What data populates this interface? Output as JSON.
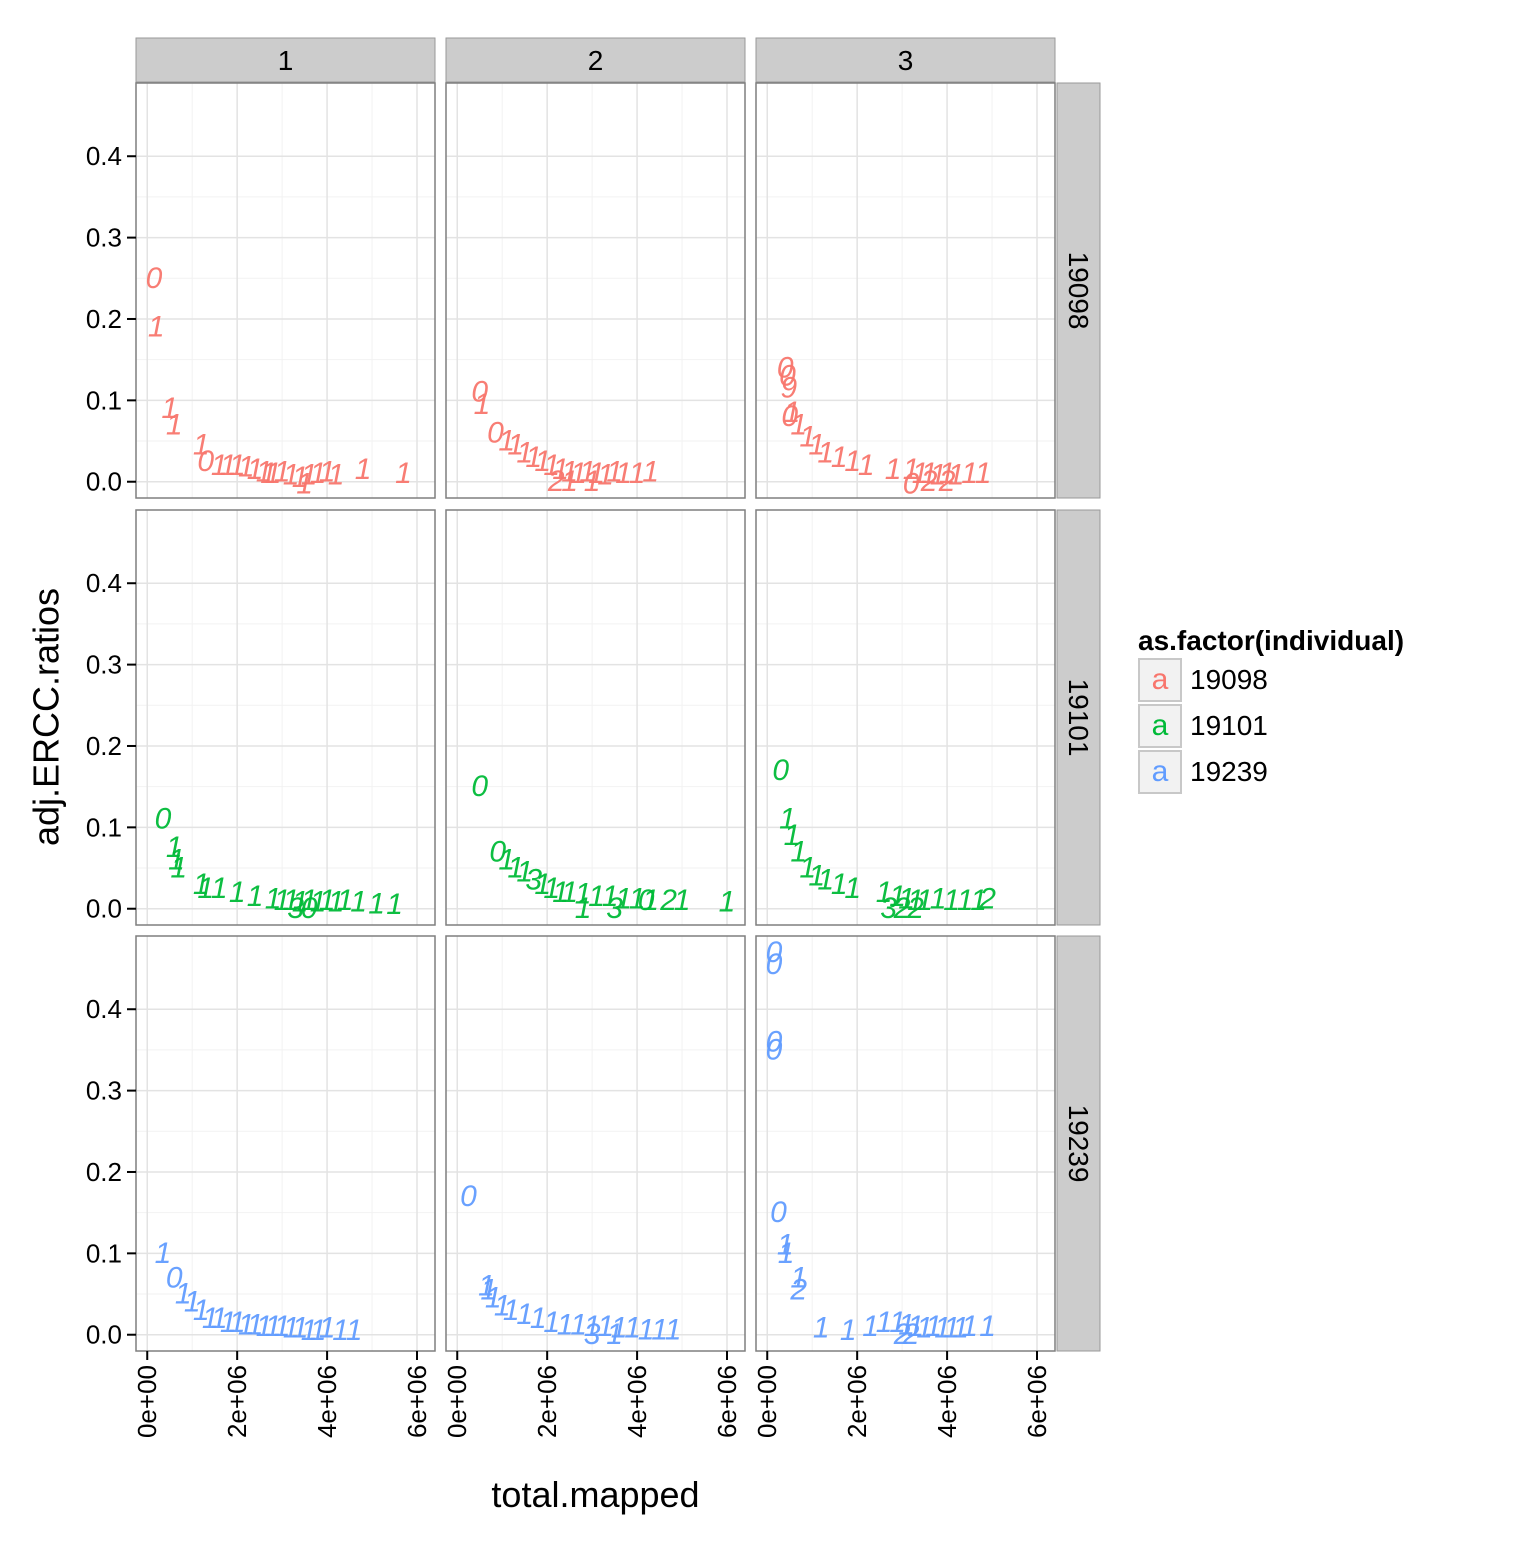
{
  "chart_data": {
    "type": "scatter",
    "title": "",
    "xlabel": "total.mapped",
    "ylabel": "adj.ERCC.ratios",
    "xlim": [
      -250000,
      6400000
    ],
    "ylim": [
      -0.02,
      0.49
    ],
    "x_ticks": [
      0,
      2000000,
      4000000,
      6000000
    ],
    "x_tick_labels": [
      "0e+00",
      "2e+06",
      "4e+06",
      "6e+06"
    ],
    "y_ticks": [
      0,
      0.1,
      0.2,
      0.3,
      0.4
    ],
    "y_tick_labels": [
      "0.0",
      "0.1",
      "0.2",
      "0.3",
      "0.4"
    ],
    "grid": true,
    "facet_cols": [
      "1",
      "2",
      "3"
    ],
    "facet_rows": [
      "19098",
      "19101",
      "19239"
    ],
    "legend": {
      "title": "as.factor(individual)",
      "key_glyph": "a",
      "position": "right",
      "entries": [
        {
          "name": "19098",
          "color": "#F8766D"
        },
        {
          "name": "19101",
          "color": "#00BA38"
        },
        {
          "name": "19239",
          "color": "#619CFF"
        }
      ]
    },
    "point_label_note": "points drawn as text labels (cell number)",
    "panels": [
      {
        "row": "19098",
        "col": "1",
        "points": [
          [
            150000,
            0.25,
            "0"
          ],
          [
            200000,
            0.19,
            "1"
          ],
          [
            500000,
            0.09,
            "1"
          ],
          [
            600000,
            0.07,
            "1"
          ],
          [
            1200000,
            0.045,
            "1"
          ],
          [
            1300000,
            0.025,
            "0"
          ],
          [
            1600000,
            0.02,
            "1"
          ],
          [
            1800000,
            0.02,
            "1"
          ],
          [
            2000000,
            0.02,
            "1"
          ],
          [
            2200000,
            0.018,
            "1"
          ],
          [
            2400000,
            0.015,
            "1"
          ],
          [
            2600000,
            0.012,
            "1"
          ],
          [
            2800000,
            0.01,
            "1"
          ],
          [
            3000000,
            0.012,
            "1"
          ],
          [
            3200000,
            0.008,
            "1"
          ],
          [
            3400000,
            0.005,
            "1"
          ],
          [
            3600000,
            0.008,
            "1"
          ],
          [
            3800000,
            0.01,
            "1"
          ],
          [
            4000000,
            0.012,
            "1"
          ],
          [
            4200000,
            0.008,
            "1"
          ],
          [
            4800000,
            0.015,
            "1"
          ],
          [
            5700000,
            0.01,
            "1"
          ],
          [
            3500000,
            -0.003,
            "1"
          ],
          [
            2700000,
            0.01,
            "1"
          ]
        ]
      },
      {
        "row": "19098",
        "col": "2",
        "points": [
          [
            500000,
            0.11,
            "0"
          ],
          [
            550000,
            0.095,
            "1"
          ],
          [
            850000,
            0.06,
            "0"
          ],
          [
            1100000,
            0.05,
            "1"
          ],
          [
            1300000,
            0.045,
            "1"
          ],
          [
            1500000,
            0.035,
            "1"
          ],
          [
            1700000,
            0.03,
            "1"
          ],
          [
            1900000,
            0.025,
            "1"
          ],
          [
            2100000,
            0.02,
            "1"
          ],
          [
            2300000,
            0.015,
            "1"
          ],
          [
            2500000,
            0.012,
            "1"
          ],
          [
            2700000,
            0.01,
            "1"
          ],
          [
            2900000,
            0.012,
            "1"
          ],
          [
            3100000,
            0.01,
            "1"
          ],
          [
            3300000,
            0.008,
            "1"
          ],
          [
            3500000,
            0.012,
            "1"
          ],
          [
            3700000,
            0.01,
            "1"
          ],
          [
            4000000,
            0.01,
            "1"
          ],
          [
            4300000,
            0.012,
            "1"
          ],
          [
            2200000,
            0.0,
            "2"
          ],
          [
            2500000,
            0.0,
            "1"
          ],
          [
            3000000,
            0.0,
            "1"
          ]
        ]
      },
      {
        "row": "19098",
        "col": "3",
        "points": [
          [
            400000,
            0.14,
            "0"
          ],
          [
            450000,
            0.13,
            "0"
          ],
          [
            480000,
            0.115,
            "9"
          ],
          [
            500000,
            0.08,
            "0"
          ],
          [
            550000,
            0.085,
            "1"
          ],
          [
            700000,
            0.07,
            "1"
          ],
          [
            900000,
            0.055,
            "1"
          ],
          [
            1100000,
            0.045,
            "1"
          ],
          [
            1300000,
            0.035,
            "1"
          ],
          [
            1600000,
            0.03,
            "1"
          ],
          [
            1900000,
            0.025,
            "1"
          ],
          [
            2200000,
            0.02,
            "1"
          ],
          [
            2800000,
            0.015,
            "1"
          ],
          [
            3200000,
            0.015,
            "1"
          ],
          [
            3400000,
            0.01,
            "1"
          ],
          [
            3600000,
            0.01,
            "1"
          ],
          [
            3800000,
            0.008,
            "1"
          ],
          [
            4000000,
            0.01,
            "1"
          ],
          [
            4200000,
            0.008,
            "1"
          ],
          [
            4500000,
            0.01,
            "1"
          ],
          [
            4800000,
            0.01,
            "1"
          ],
          [
            3200000,
            -0.003,
            "0"
          ],
          [
            3600000,
            0.0,
            "2"
          ],
          [
            4000000,
            0.0,
            "2"
          ]
        ]
      },
      {
        "row": "19101",
        "col": "1",
        "points": [
          [
            350000,
            0.11,
            "0"
          ],
          [
            600000,
            0.075,
            "1"
          ],
          [
            650000,
            0.06,
            "1"
          ],
          [
            700000,
            0.05,
            "1"
          ],
          [
            1200000,
            0.03,
            "1"
          ],
          [
            1300000,
            0.025,
            "1"
          ],
          [
            1600000,
            0.025,
            "1"
          ],
          [
            2000000,
            0.02,
            "1"
          ],
          [
            2400000,
            0.015,
            "1"
          ],
          [
            2800000,
            0.012,
            "1"
          ],
          [
            3000000,
            0.01,
            "1"
          ],
          [
            3200000,
            0.01,
            "1"
          ],
          [
            3400000,
            0.008,
            "1"
          ],
          [
            3600000,
            0.01,
            "1"
          ],
          [
            3800000,
            0.008,
            "1"
          ],
          [
            4000000,
            0.01,
            "1"
          ],
          [
            4200000,
            0.008,
            "1"
          ],
          [
            4400000,
            0.01,
            "1"
          ],
          [
            4700000,
            0.008,
            "1"
          ],
          [
            5100000,
            0.006,
            "1"
          ],
          [
            5500000,
            0.005,
            "1"
          ],
          [
            3300000,
            0.0,
            "3"
          ],
          [
            3600000,
            0.0,
            "0"
          ]
        ]
      },
      {
        "row": "19101",
        "col": "2",
        "points": [
          [
            500000,
            0.15,
            "0"
          ],
          [
            900000,
            0.07,
            "0"
          ],
          [
            1100000,
            0.06,
            "1"
          ],
          [
            1300000,
            0.05,
            "1"
          ],
          [
            1500000,
            0.045,
            "1"
          ],
          [
            1700000,
            0.035,
            "3"
          ],
          [
            1900000,
            0.03,
            "1"
          ],
          [
            2100000,
            0.025,
            "1"
          ],
          [
            2300000,
            0.02,
            "1"
          ],
          [
            2500000,
            0.02,
            "1"
          ],
          [
            2800000,
            0.018,
            "1"
          ],
          [
            3100000,
            0.015,
            "1"
          ],
          [
            3400000,
            0.015,
            "1"
          ],
          [
            3700000,
            0.012,
            "1"
          ],
          [
            4000000,
            0.012,
            "1"
          ],
          [
            4300000,
            0.01,
            "1"
          ],
          [
            4700000,
            0.01,
            "2"
          ],
          [
            5000000,
            0.01,
            "1"
          ],
          [
            6000000,
            0.008,
            "1"
          ],
          [
            2800000,
            0.0,
            "1"
          ],
          [
            3500000,
            0.0,
            "3"
          ],
          [
            4200000,
            0.01,
            "0"
          ]
        ]
      },
      {
        "row": "19101",
        "col": "3",
        "points": [
          [
            300000,
            0.17,
            "0"
          ],
          [
            450000,
            0.11,
            "1"
          ],
          [
            550000,
            0.09,
            "1"
          ],
          [
            700000,
            0.07,
            "1"
          ],
          [
            900000,
            0.05,
            "1"
          ],
          [
            1100000,
            0.04,
            "1"
          ],
          [
            1300000,
            0.035,
            "1"
          ],
          [
            1600000,
            0.03,
            "1"
          ],
          [
            1900000,
            0.025,
            "1"
          ],
          [
            2600000,
            0.02,
            "1"
          ],
          [
            2900000,
            0.015,
            "1"
          ],
          [
            3100000,
            0.012,
            "1"
          ],
          [
            3300000,
            0.01,
            "1"
          ],
          [
            3500000,
            0.01,
            "1"
          ],
          [
            3800000,
            0.012,
            "1"
          ],
          [
            4100000,
            0.01,
            "1"
          ],
          [
            4400000,
            0.01,
            "1"
          ],
          [
            4700000,
            0.01,
            "1"
          ],
          [
            4900000,
            0.012,
            "2"
          ],
          [
            2700000,
            0.0,
            "3"
          ],
          [
            3000000,
            0.0,
            "2"
          ],
          [
            3300000,
            0.0,
            "2"
          ]
        ]
      },
      {
        "row": "19239",
        "col": "1",
        "points": [
          [
            350000,
            0.1,
            "1"
          ],
          [
            600000,
            0.07,
            "0"
          ],
          [
            800000,
            0.05,
            "1"
          ],
          [
            1000000,
            0.04,
            "1"
          ],
          [
            1200000,
            0.03,
            "1"
          ],
          [
            1400000,
            0.02,
            "1"
          ],
          [
            1600000,
            0.02,
            "1"
          ],
          [
            1800000,
            0.015,
            "1"
          ],
          [
            2000000,
            0.015,
            "1"
          ],
          [
            2200000,
            0.012,
            "1"
          ],
          [
            2400000,
            0.012,
            "1"
          ],
          [
            2600000,
            0.01,
            "1"
          ],
          [
            2800000,
            0.01,
            "1"
          ],
          [
            3000000,
            0.01,
            "1"
          ],
          [
            3200000,
            0.008,
            "1"
          ],
          [
            3400000,
            0.008,
            "1"
          ],
          [
            3600000,
            0.005,
            "1"
          ],
          [
            3800000,
            0.005,
            "1"
          ],
          [
            4000000,
            0.008,
            "1"
          ],
          [
            4300000,
            0.005,
            "1"
          ],
          [
            4600000,
            0.005,
            "1"
          ]
        ]
      },
      {
        "row": "19239",
        "col": "2",
        "points": [
          [
            250000,
            0.17,
            "0"
          ],
          [
            650000,
            0.06,
            "1"
          ],
          [
            700000,
            0.055,
            "1"
          ],
          [
            800000,
            0.045,
            "1"
          ],
          [
            1000000,
            0.035,
            "1"
          ],
          [
            1200000,
            0.03,
            "1"
          ],
          [
            1500000,
            0.025,
            "1"
          ],
          [
            1800000,
            0.02,
            "1"
          ],
          [
            2100000,
            0.015,
            "1"
          ],
          [
            2400000,
            0.012,
            "1"
          ],
          [
            2700000,
            0.012,
            "1"
          ],
          [
            3000000,
            0.01,
            "1"
          ],
          [
            3300000,
            0.01,
            "1"
          ],
          [
            3600000,
            0.008,
            "1"
          ],
          [
            3900000,
            0.008,
            "1"
          ],
          [
            4200000,
            0.006,
            "1"
          ],
          [
            4500000,
            0.006,
            "1"
          ],
          [
            4800000,
            0.006,
            "1"
          ],
          [
            3000000,
            0.0,
            "3"
          ],
          [
            3500000,
            0.0,
            "1"
          ]
        ]
      },
      {
        "row": "19239",
        "col": "3",
        "points": [
          [
            150000,
            0.47,
            "0"
          ],
          [
            150000,
            0.455,
            "0"
          ],
          [
            150000,
            0.36,
            "0"
          ],
          [
            150000,
            0.35,
            "0"
          ],
          [
            250000,
            0.15,
            "0"
          ],
          [
            400000,
            0.11,
            "1"
          ],
          [
            420000,
            0.1,
            "1"
          ],
          [
            700000,
            0.07,
            "1"
          ],
          [
            700000,
            0.055,
            "2"
          ],
          [
            1200000,
            0.008,
            "1"
          ],
          [
            1800000,
            0.005,
            "1"
          ],
          [
            2300000,
            0.01,
            "1"
          ],
          [
            2600000,
            0.015,
            "1"
          ],
          [
            2900000,
            0.015,
            "1"
          ],
          [
            3100000,
            0.012,
            "1"
          ],
          [
            3300000,
            0.01,
            "1"
          ],
          [
            3500000,
            0.008,
            "1"
          ],
          [
            3700000,
            0.01,
            "1"
          ],
          [
            3900000,
            0.008,
            "1"
          ],
          [
            4100000,
            0.008,
            "1"
          ],
          [
            4300000,
            0.008,
            "1"
          ],
          [
            4500000,
            0.01,
            "1"
          ],
          [
            4900000,
            0.01,
            "1"
          ],
          [
            3000000,
            0.0,
            "2"
          ],
          [
            3200000,
            0.0,
            "2"
          ]
        ]
      }
    ]
  }
}
